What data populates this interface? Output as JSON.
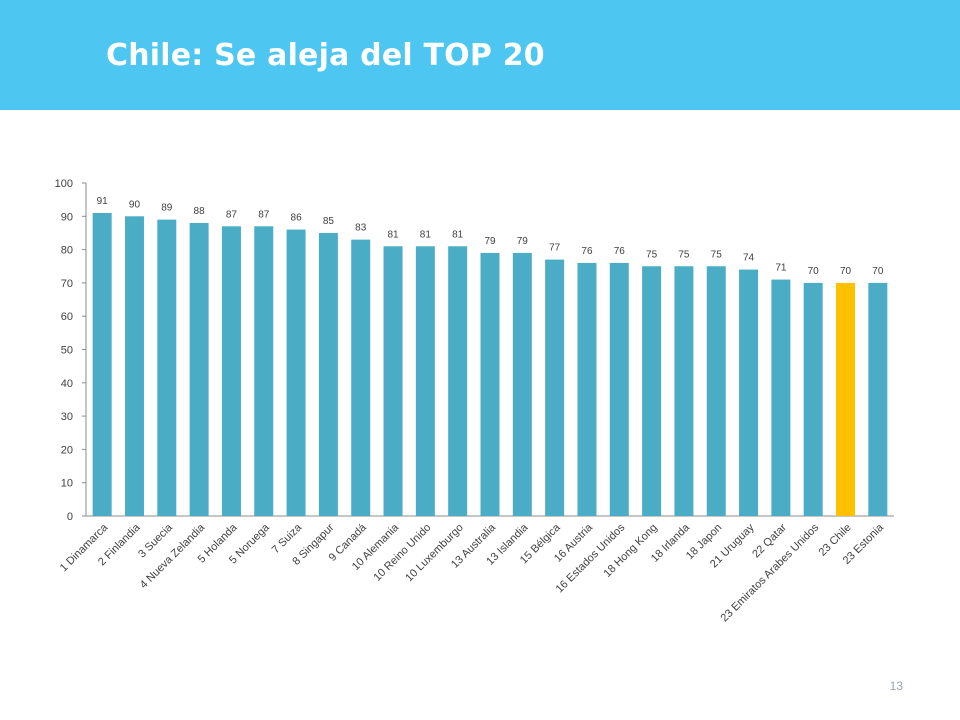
{
  "slide": {
    "title": "Chile: Se aleja del TOP 20",
    "page_number": "13"
  },
  "colors": {
    "header": "#4dc6f2",
    "bar": "#4bacc6",
    "highlight": "#ffc000"
  },
  "chart_data": {
    "type": "bar",
    "title": "",
    "xlabel": "",
    "ylabel": "",
    "ylim": [
      0,
      100
    ],
    "yticks": [
      0,
      10,
      20,
      30,
      40,
      50,
      60,
      70,
      80,
      90,
      100
    ],
    "grid": false,
    "legend": "none",
    "data_labels": true,
    "highlight_category": "23 Chile",
    "categories": [
      "1 Dinamarca",
      "2 Finlandia",
      "3 Suecia",
      "4 Nueva Zelandia",
      "5 Holanda",
      "5 Noruega",
      "7 Suiza",
      "8 Singapur",
      "9 Canadá",
      "10 Alemania",
      "10 Reino Unido",
      "10 Luxemburgo",
      "13 Australia",
      "13 Islandia",
      "15 Bélgica",
      "16 Austria",
      "16 Estados Unidos",
      "18 Hong Kong",
      "18 Irlanda",
      "18 Japon",
      "21 Uruguay",
      "22 Qatar",
      "23 Emiratos Arabes Unidos",
      "23 Chile",
      "23 Estonia"
    ],
    "values": [
      91,
      90,
      89,
      88,
      87,
      87,
      86,
      85,
      83,
      81,
      81,
      81,
      79,
      79,
      77,
      76,
      76,
      75,
      75,
      75,
      74,
      71,
      70,
      70,
      70
    ]
  }
}
